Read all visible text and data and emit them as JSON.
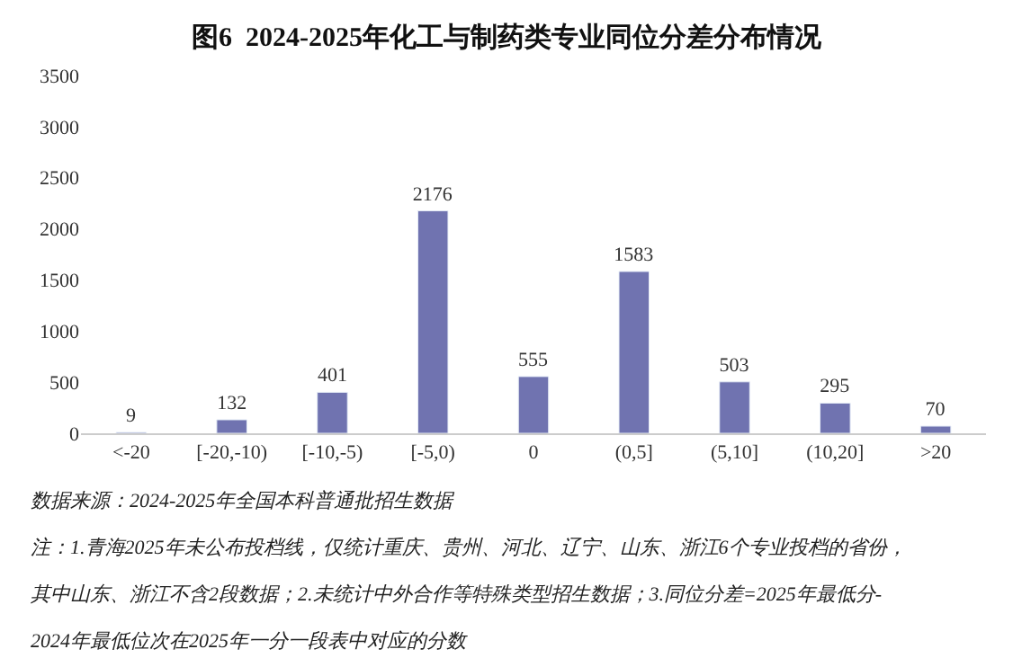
{
  "chart_data": {
    "type": "bar",
    "title": "图6  2024-2025年化工与制药类专业同位分差分布情况",
    "categories": [
      "<-20",
      "[-20,-10)",
      "[-10,-5)",
      "[-5,0)",
      "0",
      "(0,5]",
      "(5,10]",
      "(10,20]",
      ">20"
    ],
    "values": [
      9,
      132,
      401,
      2176,
      555,
      1583,
      503,
      295,
      70
    ],
    "color": "#7073b0",
    "data_labels": true,
    "ylim": [
      0,
      3500
    ],
    "yticks": [
      0,
      500,
      1000,
      1500,
      2000,
      2500,
      3000,
      3500
    ],
    "annotations": [
      "数据来源：2024-2025年全国本科普通批招生数据",
      "注：1.青海2025年未公布投档线，仅统计重庆、贵州、河北、辽宁、山东、浙江6个专业投档的省份，",
      "其中山东、浙江不含2段数据；2.未统计中外合作等特殊类型招生数据；3.同位分差=2025年最低分-",
      "2024年最低位次在2025年一分一段表中对应的分数"
    ]
  }
}
